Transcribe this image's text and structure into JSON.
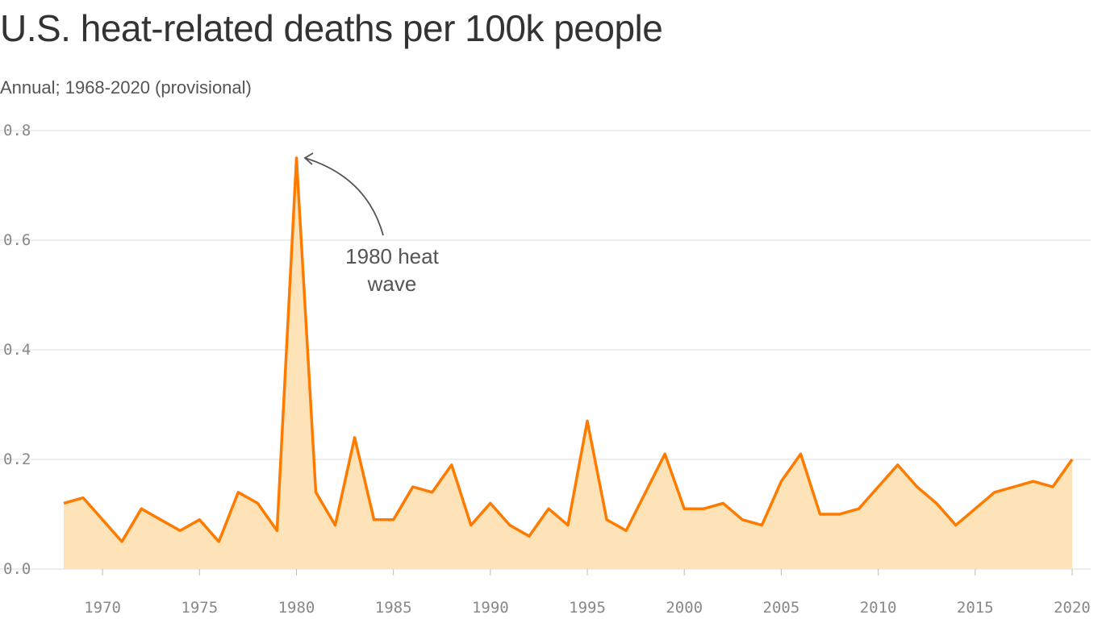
{
  "chart_data": {
    "type": "area",
    "title": "U.S. heat-related deaths per 100k people",
    "subtitle": "Annual; 1968-2020 (provisional)",
    "xlabel": "",
    "ylabel": "",
    "x": [
      1968,
      1969,
      1970,
      1971,
      1972,
      1973,
      1974,
      1975,
      1976,
      1977,
      1978,
      1979,
      1980,
      1981,
      1982,
      1983,
      1984,
      1985,
      1986,
      1987,
      1988,
      1989,
      1990,
      1991,
      1992,
      1993,
      1994,
      1995,
      1996,
      1997,
      1998,
      1999,
      2000,
      2001,
      2002,
      2003,
      2004,
      2005,
      2006,
      2007,
      2008,
      2009,
      2010,
      2011,
      2012,
      2013,
      2014,
      2015,
      2016,
      2017,
      2018,
      2019,
      2020
    ],
    "values": [
      0.12,
      0.13,
      0.09,
      0.05,
      0.11,
      0.09,
      0.07,
      0.09,
      0.05,
      0.14,
      0.12,
      0.07,
      0.75,
      0.14,
      0.08,
      0.24,
      0.09,
      0.09,
      0.15,
      0.14,
      0.19,
      0.08,
      0.12,
      0.08,
      0.06,
      0.11,
      0.08,
      0.27,
      0.09,
      0.07,
      0.14,
      0.21,
      0.11,
      0.11,
      0.12,
      0.09,
      0.08,
      0.16,
      0.21,
      0.1,
      0.1,
      0.11,
      0.15,
      0.19,
      0.15,
      0.12,
      0.08,
      0.11,
      0.14,
      0.15,
      0.16,
      0.15,
      0.2
    ],
    "xlim": [
      1968,
      2020
    ],
    "ylim": [
      0,
      0.8
    ],
    "yticks": [
      "0.0",
      "0.2",
      "0.4",
      "0.6",
      "0.8"
    ],
    "xticks": [
      "1970",
      "1975",
      "1980",
      "1985",
      "1990",
      "1995",
      "2000",
      "2005",
      "2010",
      "2015",
      "2020"
    ],
    "grid": "horizontal",
    "annotations": [
      {
        "x": 1980,
        "y": 0.75,
        "text_line1": "1980 heat",
        "text_line2": "wave"
      }
    ],
    "colors": {
      "line": "#ff7b00",
      "fill": "#fee3b8",
      "grid": "#dddddd",
      "text": "#333333"
    }
  }
}
